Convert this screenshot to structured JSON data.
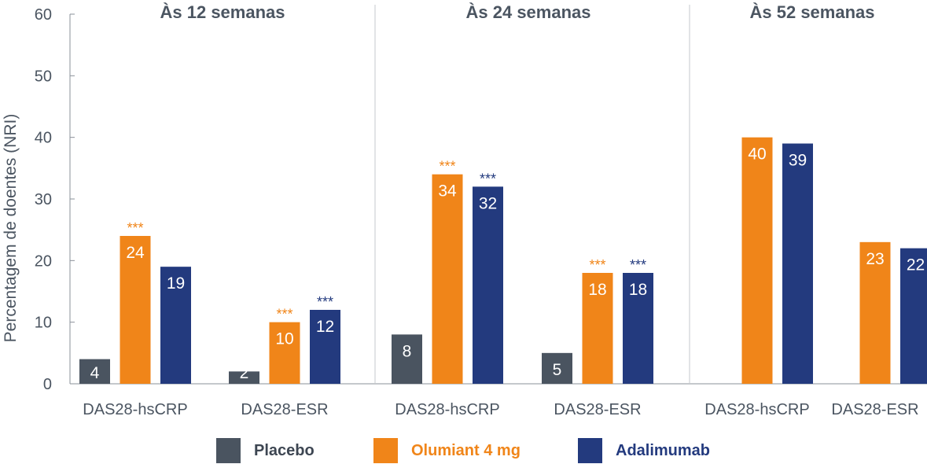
{
  "chart_data": {
    "type": "bar",
    "ylabel": "Percentagem de doentes (NRI)",
    "ylim": [
      0,
      60
    ],
    "yticks": [
      "0",
      "10",
      "20",
      "30",
      "40",
      "50",
      "60"
    ],
    "grid": false,
    "legend_position": "bottom",
    "colors": {
      "Placebo": "#4a5460",
      "Olumiant 4 mg": "#f08519",
      "Adalimumab": "#233a7e",
      "axis": "#8a9099",
      "divider": "#c5c8cc"
    },
    "panels": [
      {
        "title": "Às 12 semanas",
        "categories": [
          "DAS28-hsCRP",
          "DAS28-ESR"
        ],
        "series": [
          {
            "name": "Placebo",
            "values": [
              4,
              2
            ],
            "labels": [
              "4",
              "2"
            ],
            "sig": [
              "",
              ""
            ]
          },
          {
            "name": "Olumiant 4 mg",
            "values": [
              24,
              10
            ],
            "labels": [
              "24",
              "10"
            ],
            "sig": [
              "***",
              "***"
            ]
          },
          {
            "name": "Adalimumab",
            "values": [
              19,
              12
            ],
            "labels": [
              "19",
              "12"
            ],
            "sig": [
              "",
              "***"
            ]
          }
        ]
      },
      {
        "title": "Às 24 semanas",
        "categories": [
          "DAS28-hsCRP",
          "DAS28-ESR"
        ],
        "series": [
          {
            "name": "Placebo",
            "values": [
              8,
              5
            ],
            "labels": [
              "8",
              "5"
            ],
            "sig": [
              "",
              ""
            ]
          },
          {
            "name": "Olumiant 4 mg",
            "values": [
              34,
              18
            ],
            "labels": [
              "34",
              "18"
            ],
            "sig": [
              "***",
              "***"
            ]
          },
          {
            "name": "Adalimumab",
            "values": [
              32,
              18
            ],
            "labels": [
              "32",
              "18"
            ],
            "sig": [
              "***",
              "***"
            ]
          }
        ]
      },
      {
        "title": "Às 52 semanas",
        "categories": [
          "DAS28-hsCRP",
          "DAS28-ESR"
        ],
        "series": [
          {
            "name": "Placebo",
            "values": [
              null,
              null
            ],
            "labels": [
              "",
              ""
            ],
            "sig": [
              "",
              ""
            ]
          },
          {
            "name": "Olumiant 4 mg",
            "values": [
              40,
              23
            ],
            "labels": [
              "40",
              "23"
            ],
            "sig": [
              "",
              ""
            ]
          },
          {
            "name": "Adalimumab",
            "values": [
              39,
              22
            ],
            "labels": [
              "39",
              "22"
            ],
            "sig": [
              "",
              ""
            ]
          }
        ]
      }
    ],
    "legend": [
      "Placebo",
      "Olumiant 4 mg",
      "Adalimumab"
    ]
  }
}
